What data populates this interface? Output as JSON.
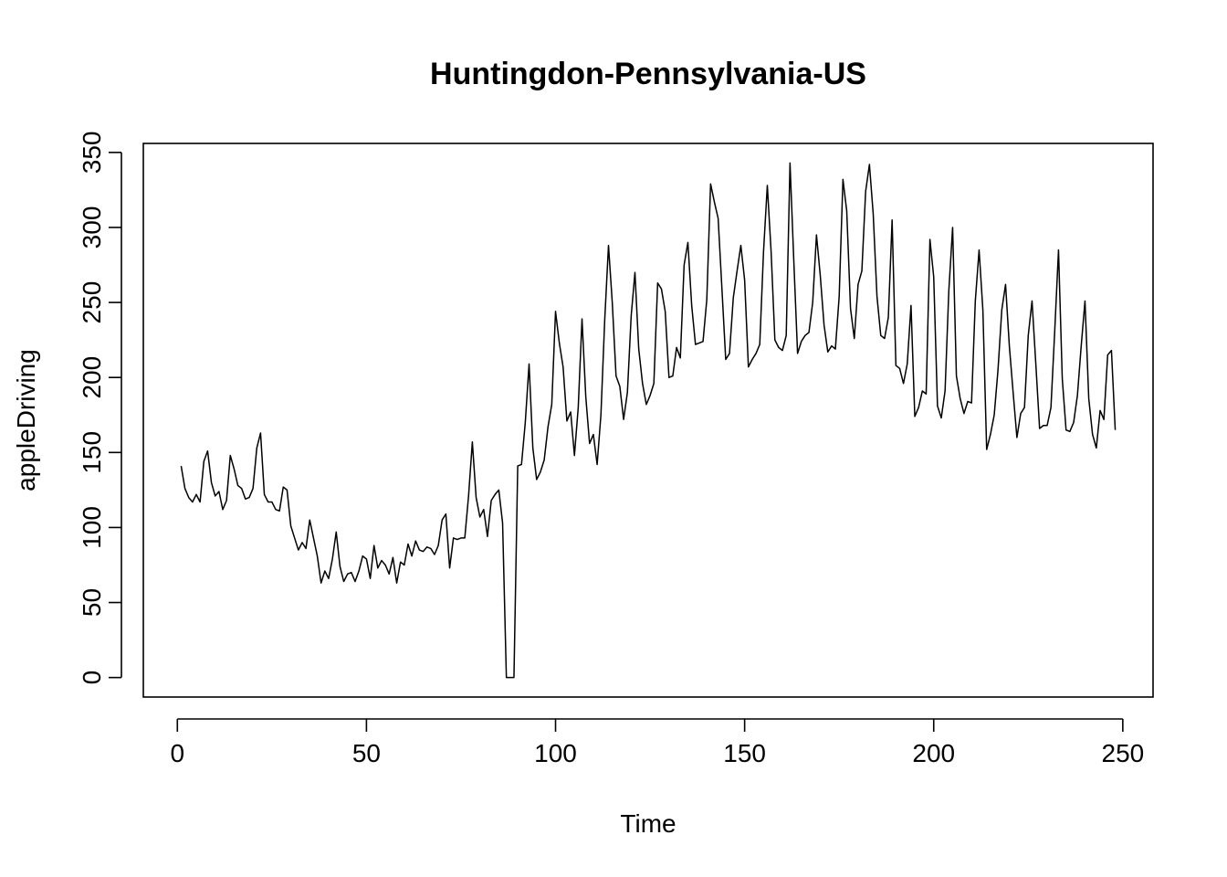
{
  "chart_data": {
    "type": "line",
    "title": "Huntingdon-Pennsylvania-US",
    "xlabel": "Time",
    "ylabel": "appleDriving",
    "xlim": [
      -9,
      258
    ],
    "ylim": [
      -13,
      356
    ],
    "xticks": [
      0,
      50,
      100,
      150,
      200,
      250
    ],
    "yticks": [
      0,
      50,
      100,
      150,
      200,
      250,
      300,
      350
    ],
    "x_start": 1,
    "series": [
      {
        "name": "appleDriving",
        "values": [
          141,
          126,
          120,
          117,
          122,
          117,
          144,
          151,
          130,
          121,
          124,
          112,
          118,
          148,
          139,
          128,
          126,
          119,
          120,
          126,
          153,
          163,
          122,
          117,
          117,
          112,
          111,
          127,
          125,
          101,
          93,
          85,
          90,
          86,
          105,
          93,
          81,
          63,
          71,
          66,
          79,
          97,
          74,
          64,
          69,
          70,
          64,
          71,
          81,
          79,
          66,
          88,
          73,
          78,
          75,
          69,
          80,
          63,
          77,
          75,
          89,
          81,
          91,
          85,
          84,
          87,
          86,
          82,
          88,
          105,
          109,
          73,
          93,
          92,
          93,
          93,
          121,
          157,
          120,
          107,
          112,
          94,
          118,
          122,
          125,
          103,
          0,
          0,
          0,
          141,
          142,
          170,
          209,
          153,
          132,
          137,
          145,
          167,
          182,
          244,
          223,
          207,
          171,
          177,
          148,
          180,
          239,
          187,
          156,
          162,
          142,
          175,
          238,
          288,
          250,
          201,
          194,
          172,
          190,
          241,
          270,
          219,
          196,
          182,
          188,
          196,
          263,
          259,
          244,
          200,
          201,
          220,
          213,
          275,
          290,
          248,
          222,
          223,
          224,
          252,
          329,
          317,
          306,
          259,
          212,
          216,
          253,
          271,
          288,
          265,
          207,
          212,
          216,
          222,
          284,
          328,
          284,
          225,
          220,
          218,
          228,
          343,
          278,
          216,
          224,
          228,
          230,
          250,
          295,
          268,
          235,
          217,
          221,
          219,
          254,
          332,
          311,
          246,
          226,
          262,
          271,
          324,
          342,
          309,
          254,
          228,
          226,
          240,
          305,
          208,
          206,
          196,
          209,
          248,
          174,
          180,
          191,
          189,
          292,
          267,
          181,
          173,
          191,
          258,
          300,
          201,
          186,
          176,
          184,
          183,
          251,
          285,
          245,
          152,
          162,
          175,
          205,
          245,
          262,
          221,
          190,
          160,
          176,
          180,
          228,
          251,
          209,
          166,
          168,
          168,
          180,
          231,
          285,
          199,
          165,
          164,
          170,
          188,
          221,
          251,
          186,
          162,
          153,
          178,
          172,
          215,
          218,
          165
        ]
      }
    ]
  }
}
